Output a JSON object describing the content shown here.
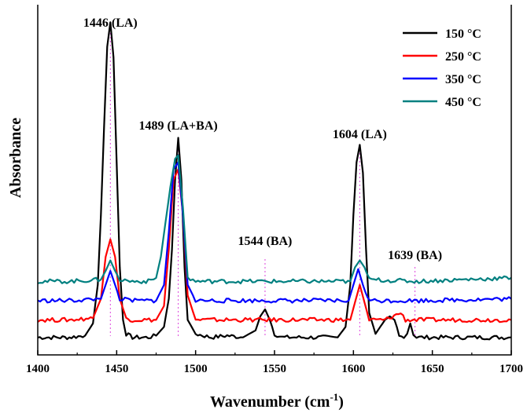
{
  "chart_data": {
    "type": "line",
    "xlabel": "Wavenumber (cm",
    "xlabel_sup": "-1",
    "xlabel_suffix": ")",
    "ylabel": "Absorbance",
    "xlim": [
      1400,
      1700
    ],
    "ylim": [
      0,
      1
    ],
    "xticks": [
      1400,
      1450,
      1500,
      1550,
      1600,
      1650,
      1700
    ],
    "grid": false,
    "legend_position": "top-right",
    "peaks": [
      {
        "x": 1446,
        "label": "1446 (LA)"
      },
      {
        "x": 1489,
        "label": "1489 (LA+BA)"
      },
      {
        "x": 1544,
        "label": "1544 (BA)"
      },
      {
        "x": 1604,
        "label": "1604 (LA)"
      },
      {
        "x": 1639,
        "label": "1639 (BA)"
      }
    ],
    "series": [
      {
        "name": "150 °C",
        "color": "#000000",
        "baseline": 0.05,
        "x": [
          1400,
          1410,
          1420,
          1430,
          1435,
          1438,
          1440,
          1442,
          1444,
          1446,
          1448,
          1450,
          1452,
          1454,
          1456,
          1460,
          1470,
          1475,
          1480,
          1483,
          1485,
          1487,
          1489,
          1491,
          1493,
          1495,
          1500,
          1510,
          1520,
          1530,
          1538,
          1541,
          1544,
          1547,
          1550,
          1555,
          1570,
          1590,
          1595,
          1598,
          1600,
          1602,
          1604,
          1606,
          1608,
          1610,
          1614,
          1617,
          1620,
          1623,
          1626,
          1629,
          1632,
          1634,
          1636,
          1638,
          1640,
          1645,
          1660,
          1680,
          1700
        ],
        "y": [
          0.05,
          0.05,
          0.05,
          0.055,
          0.09,
          0.2,
          0.4,
          0.65,
          0.88,
          0.95,
          0.85,
          0.55,
          0.25,
          0.1,
          0.06,
          0.05,
          0.05,
          0.055,
          0.08,
          0.16,
          0.3,
          0.5,
          0.62,
          0.5,
          0.25,
          0.1,
          0.06,
          0.05,
          0.055,
          0.05,
          0.07,
          0.11,
          0.13,
          0.1,
          0.06,
          0.05,
          0.05,
          0.05,
          0.08,
          0.2,
          0.4,
          0.55,
          0.6,
          0.52,
          0.3,
          0.12,
          0.06,
          0.08,
          0.1,
          0.11,
          0.1,
          0.06,
          0.05,
          0.06,
          0.09,
          0.06,
          0.05,
          0.05,
          0.05,
          0.05,
          0.05
        ]
      },
      {
        "name": "250 °C",
        "color": "#ff0000",
        "baseline": 0.1,
        "x": [
          1400,
          1420,
          1435,
          1440,
          1443,
          1446,
          1449,
          1452,
          1456,
          1460,
          1475,
          1480,
          1483,
          1486,
          1489,
          1492,
          1495,
          1500,
          1530,
          1598,
          1601,
          1604,
          1607,
          1610,
          1620,
          1630,
          1633,
          1640,
          1660,
          1700
        ],
        "y": [
          0.1,
          0.1,
          0.105,
          0.16,
          0.28,
          0.33,
          0.28,
          0.16,
          0.105,
          0.1,
          0.1,
          0.14,
          0.3,
          0.5,
          0.53,
          0.4,
          0.17,
          0.1,
          0.1,
          0.1,
          0.15,
          0.2,
          0.15,
          0.1,
          0.1,
          0.12,
          0.1,
          0.1,
          0.1,
          0.1
        ]
      },
      {
        "name": "350 °C",
        "color": "#0000ff",
        "baseline": 0.155,
        "x": [
          1400,
          1420,
          1440,
          1443,
          1446,
          1449,
          1452,
          1460,
          1475,
          1480,
          1483,
          1486,
          1489,
          1492,
          1495,
          1500,
          1530,
          1597,
          1600,
          1603,
          1606,
          1609,
          1612,
          1640,
          1700
        ],
        "y": [
          0.155,
          0.155,
          0.16,
          0.2,
          0.24,
          0.2,
          0.16,
          0.155,
          0.155,
          0.2,
          0.35,
          0.53,
          0.55,
          0.4,
          0.2,
          0.155,
          0.155,
          0.155,
          0.2,
          0.245,
          0.2,
          0.16,
          0.155,
          0.155,
          0.16
        ]
      },
      {
        "name": "450 °C",
        "color": "#008080",
        "baseline": 0.21,
        "x": [
          1400,
          1420,
          1440,
          1443,
          1446,
          1449,
          1452,
          1460,
          1470,
          1475,
          1478,
          1481,
          1484,
          1487,
          1489,
          1492,
          1495,
          1500,
          1530,
          1598,
          1601,
          1604,
          1607,
          1610,
          1640,
          1700
        ],
        "y": [
          0.21,
          0.21,
          0.215,
          0.24,
          0.27,
          0.24,
          0.215,
          0.21,
          0.21,
          0.22,
          0.28,
          0.38,
          0.48,
          0.56,
          0.57,
          0.42,
          0.22,
          0.21,
          0.21,
          0.21,
          0.25,
          0.27,
          0.25,
          0.215,
          0.21,
          0.22
        ]
      }
    ]
  }
}
